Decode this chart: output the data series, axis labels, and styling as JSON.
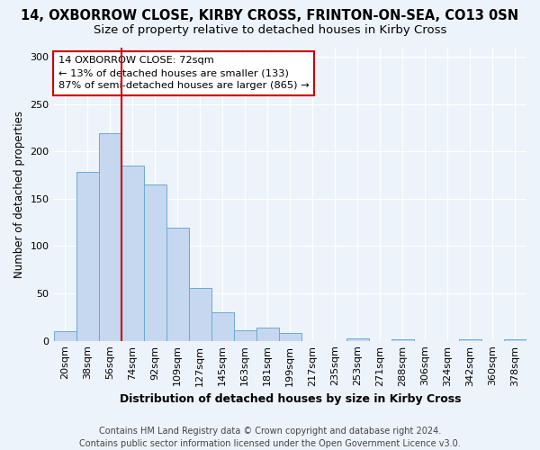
{
  "title": "14, OXBORROW CLOSE, KIRBY CROSS, FRINTON-ON-SEA, CO13 0SN",
  "subtitle": "Size of property relative to detached houses in Kirby Cross",
  "xlabel": "Distribution of detached houses by size in Kirby Cross",
  "ylabel": "Number of detached properties",
  "categories": [
    "20sqm",
    "38sqm",
    "56sqm",
    "74sqm",
    "92sqm",
    "109sqm",
    "127sqm",
    "145sqm",
    "163sqm",
    "181sqm",
    "199sqm",
    "217sqm",
    "235sqm",
    "253sqm",
    "271sqm",
    "288sqm",
    "306sqm",
    "324sqm",
    "342sqm",
    "360sqm",
    "378sqm"
  ],
  "values": [
    10,
    178,
    219,
    185,
    165,
    119,
    56,
    30,
    11,
    14,
    8,
    0,
    0,
    3,
    0,
    2,
    0,
    0,
    2,
    0,
    2
  ],
  "bar_color": "#c5d8f0",
  "bar_edge_color": "#6aaad4",
  "vline_color": "#cc0000",
  "vline_x": 2.5,
  "annotation_text": "14 OXBORROW CLOSE: 72sqm\n← 13% of detached houses are smaller (133)\n87% of semi-detached houses are larger (865) →",
  "annotation_box_color": "#ffffff",
  "annotation_box_edge": "#cc0000",
  "ylim": [
    0,
    310
  ],
  "yticks": [
    0,
    50,
    100,
    150,
    200,
    250,
    300
  ],
  "background_color": "#edf3fa",
  "footer": "Contains HM Land Registry data © Crown copyright and database right 2024.\nContains public sector information licensed under the Open Government Licence v3.0.",
  "title_fontsize": 10.5,
  "subtitle_fontsize": 9.5,
  "xlabel_fontsize": 9,
  "ylabel_fontsize": 8.5,
  "footer_fontsize": 7,
  "tick_fontsize": 8
}
